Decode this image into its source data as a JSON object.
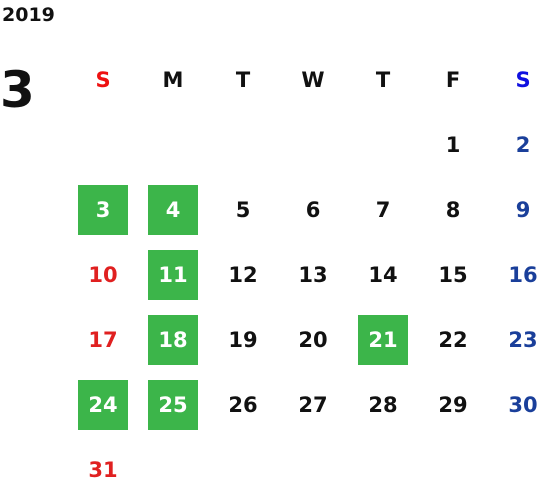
{
  "year": "2019",
  "month": "3",
  "weekdays": [
    "S",
    "M",
    "T",
    "W",
    "T",
    "F",
    "S"
  ],
  "weeks": [
    [
      null,
      null,
      null,
      null,
      null,
      {
        "day": 1,
        "marked": false
      },
      {
        "day": 2,
        "marked": false
      }
    ],
    [
      {
        "day": 3,
        "marked": true
      },
      {
        "day": 4,
        "marked": true
      },
      {
        "day": 5,
        "marked": false
      },
      {
        "day": 6,
        "marked": false
      },
      {
        "day": 7,
        "marked": false
      },
      {
        "day": 8,
        "marked": false
      },
      {
        "day": 9,
        "marked": false
      }
    ],
    [
      {
        "day": 10,
        "marked": false
      },
      {
        "day": 11,
        "marked": true
      },
      {
        "day": 12,
        "marked": false
      },
      {
        "day": 13,
        "marked": false
      },
      {
        "day": 14,
        "marked": false
      },
      {
        "day": 15,
        "marked": false
      },
      {
        "day": 16,
        "marked": false
      }
    ],
    [
      {
        "day": 17,
        "marked": false
      },
      {
        "day": 18,
        "marked": true
      },
      {
        "day": 19,
        "marked": false
      },
      {
        "day": 20,
        "marked": false
      },
      {
        "day": 21,
        "marked": true
      },
      {
        "day": 22,
        "marked": false
      },
      {
        "day": 23,
        "marked": false
      }
    ],
    [
      {
        "day": 24,
        "marked": true
      },
      {
        "day": 25,
        "marked": true
      },
      {
        "day": 26,
        "marked": false
      },
      {
        "day": 27,
        "marked": false
      },
      {
        "day": 28,
        "marked": false
      },
      {
        "day": 29,
        "marked": false
      },
      {
        "day": 30,
        "marked": false
      }
    ],
    [
      {
        "day": 31,
        "marked": false
      },
      null,
      null,
      null,
      null,
      null,
      null
    ]
  ]
}
